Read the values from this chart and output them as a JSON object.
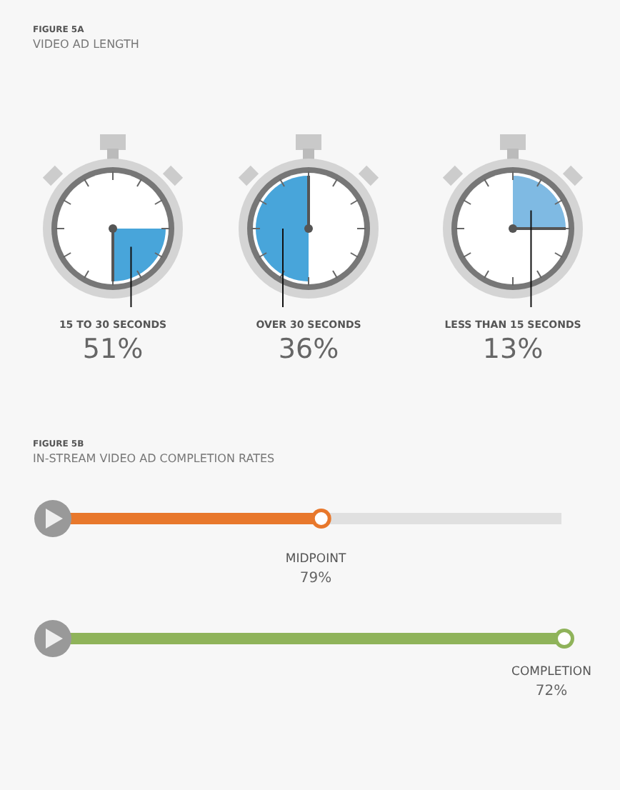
{
  "chart_data": [
    {
      "type": "other",
      "title": "FIGURE 5A",
      "subtitle": "VIDEO AD LENGTH",
      "categories": [
        "15 TO 30 SECONDS",
        "OVER 30 SECONDS",
        "LESS THAN 15 SECONDS"
      ],
      "values": [
        51,
        36,
        13
      ],
      "value_labels": [
        "51%",
        "36%",
        "13%"
      ],
      "colors": [
        "#1a8fd1",
        "#1a8fd1",
        "#5fa9dc"
      ]
    },
    {
      "type": "other",
      "title": "FIGURE 5B",
      "subtitle": "IN-STREAM VIDEO AD COMPLETION RATES",
      "categories": [
        "MIDPOINT",
        "COMPLETION"
      ],
      "values": [
        79,
        72
      ],
      "value_labels": [
        "79%",
        "72%"
      ],
      "colors": [
        "#e8782c",
        "#8fb35a"
      ]
    }
  ]
}
